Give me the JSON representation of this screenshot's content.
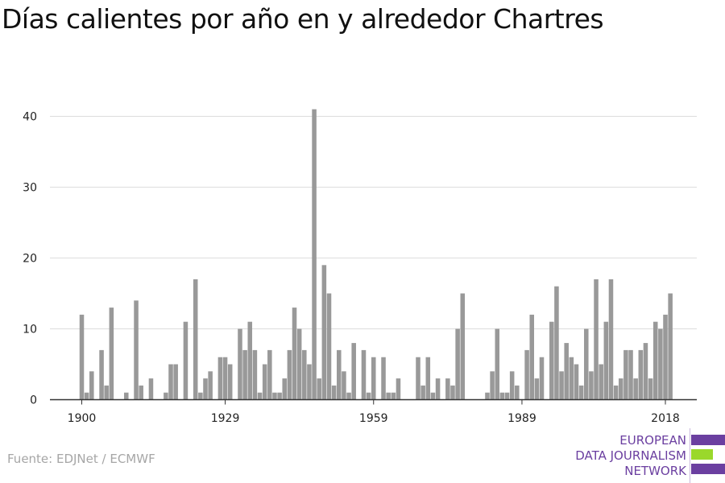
{
  "title": "Días calientes por año en y alrededor Chartres",
  "source": "Fuente: EDJNet / ECMWF",
  "logo": {
    "line1": "EUROPEAN",
    "line2": "DATA JOURNALISM",
    "line3": "NETWORK",
    "colors": {
      "purple": "#6b3fa0",
      "green": "#9ad82b"
    }
  },
  "colors": {
    "bar": "#999999",
    "grid": "#dddddd",
    "axis": "#333333",
    "text": "#222222"
  },
  "chart_data": {
    "type": "bar",
    "title": "Días calientes por año en y alrededor Chartres",
    "xlabel": "",
    "ylabel": "",
    "ylim": [
      0,
      40
    ],
    "yticks": [
      0,
      10,
      20,
      30,
      40
    ],
    "xticks": [
      1900,
      1929,
      1959,
      1989,
      2018
    ],
    "grid": true,
    "x": [
      1900,
      1901,
      1902,
      1903,
      1904,
      1905,
      1906,
      1907,
      1908,
      1909,
      1910,
      1911,
      1912,
      1913,
      1914,
      1915,
      1916,
      1917,
      1918,
      1919,
      1920,
      1921,
      1922,
      1923,
      1924,
      1925,
      1926,
      1927,
      1928,
      1929,
      1930,
      1931,
      1932,
      1933,
      1934,
      1935,
      1936,
      1937,
      1938,
      1939,
      1940,
      1941,
      1942,
      1943,
      1944,
      1945,
      1946,
      1947,
      1948,
      1949,
      1950,
      1951,
      1952,
      1953,
      1954,
      1955,
      1956,
      1957,
      1958,
      1959,
      1960,
      1961,
      1962,
      1963,
      1964,
      1965,
      1966,
      1967,
      1968,
      1969,
      1970,
      1971,
      1972,
      1973,
      1974,
      1975,
      1976,
      1977,
      1978,
      1979,
      1980,
      1981,
      1982,
      1983,
      1984,
      1985,
      1986,
      1987,
      1988,
      1989,
      1990,
      1991,
      1992,
      1993,
      1994,
      1995,
      1996,
      1997,
      1998,
      1999,
      2000,
      2001,
      2002,
      2003,
      2004,
      2005,
      2006,
      2007,
      2008,
      2009,
      2010,
      2011,
      2012,
      2013,
      2014,
      2015,
      2016,
      2017,
      2018,
      2019,
      2020
    ],
    "values": [
      12,
      1,
      4,
      0,
      7,
      2,
      13,
      0,
      0,
      1,
      0,
      14,
      2,
      0,
      3,
      0,
      0,
      1,
      5,
      5,
      0,
      11,
      0,
      17,
      1,
      3,
      4,
      0,
      6,
      6,
      5,
      0,
      10,
      7,
      11,
      7,
      1,
      5,
      7,
      1,
      1,
      3,
      7,
      13,
      10,
      7,
      5,
      41,
      3,
      19,
      15,
      2,
      7,
      4,
      1,
      8,
      0,
      7,
      1,
      6,
      0,
      6,
      1,
      1,
      3,
      0,
      0,
      0,
      6,
      2,
      6,
      1,
      3,
      0,
      3,
      2,
      10,
      15,
      0,
      0,
      0,
      0,
      1,
      4,
      10,
      1,
      1,
      4,
      2,
      0,
      7,
      12,
      3,
      6,
      0,
      11,
      16,
      4,
      8,
      6,
      5,
      2,
      10,
      4,
      17,
      5,
      11,
      17,
      2,
      3,
      7,
      7,
      3,
      7,
      8,
      3,
      11,
      10,
      12,
      15,
      0
    ]
  }
}
